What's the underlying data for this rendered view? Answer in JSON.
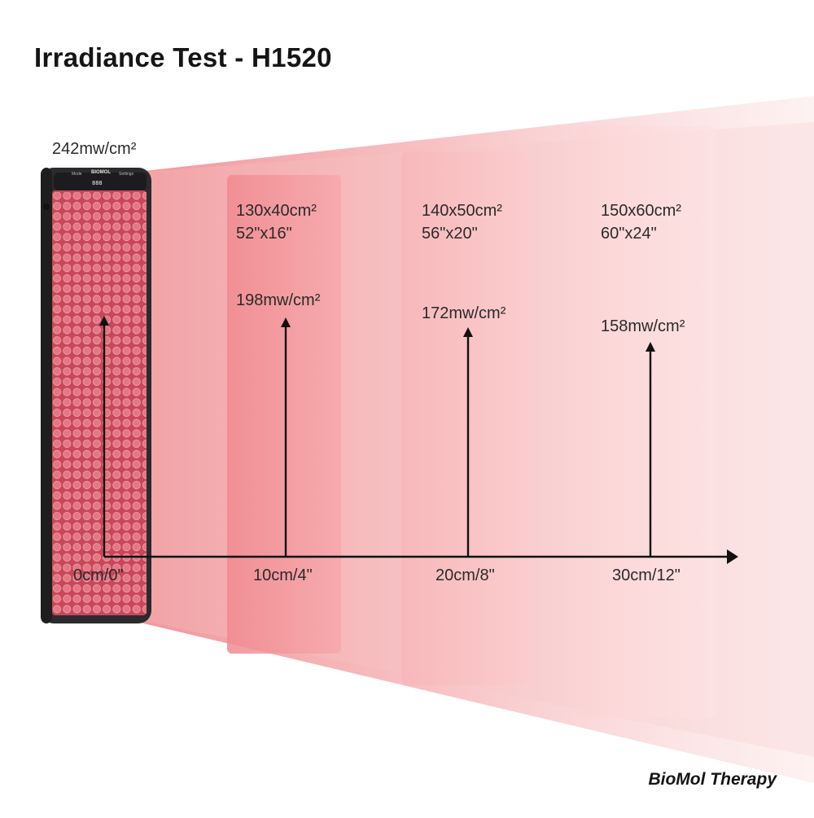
{
  "title": "Irradiance Test - H1520",
  "brand": "BioMol Therapy",
  "device": {
    "logo_text": "BIOMOL",
    "left_button_label": "Mode",
    "right_button_label": "Settings",
    "display_value": "888",
    "irradiance_label": "242mw/cm²",
    "distance_label": "0cm/0\""
  },
  "measurements": [
    {
      "area_metric": "130x40cm²",
      "area_imperial": "52\"x16\"",
      "irradiance": "198mw/cm²",
      "distance": "10cm/4\""
    },
    {
      "area_metric": "140x50cm²",
      "area_imperial": "56\"x20\"",
      "irradiance": "172mw/cm²",
      "distance": "20cm/8\""
    },
    {
      "area_metric": "150x60cm²",
      "area_imperial": "60\"x24\"",
      "irradiance": "158mw/cm²",
      "distance": "30cm/12\""
    }
  ],
  "colors": {
    "beam": "#f4a3a6",
    "panel_red": "#c9475a",
    "device_body": "#2b2b2d",
    "arrow": "#111111"
  }
}
